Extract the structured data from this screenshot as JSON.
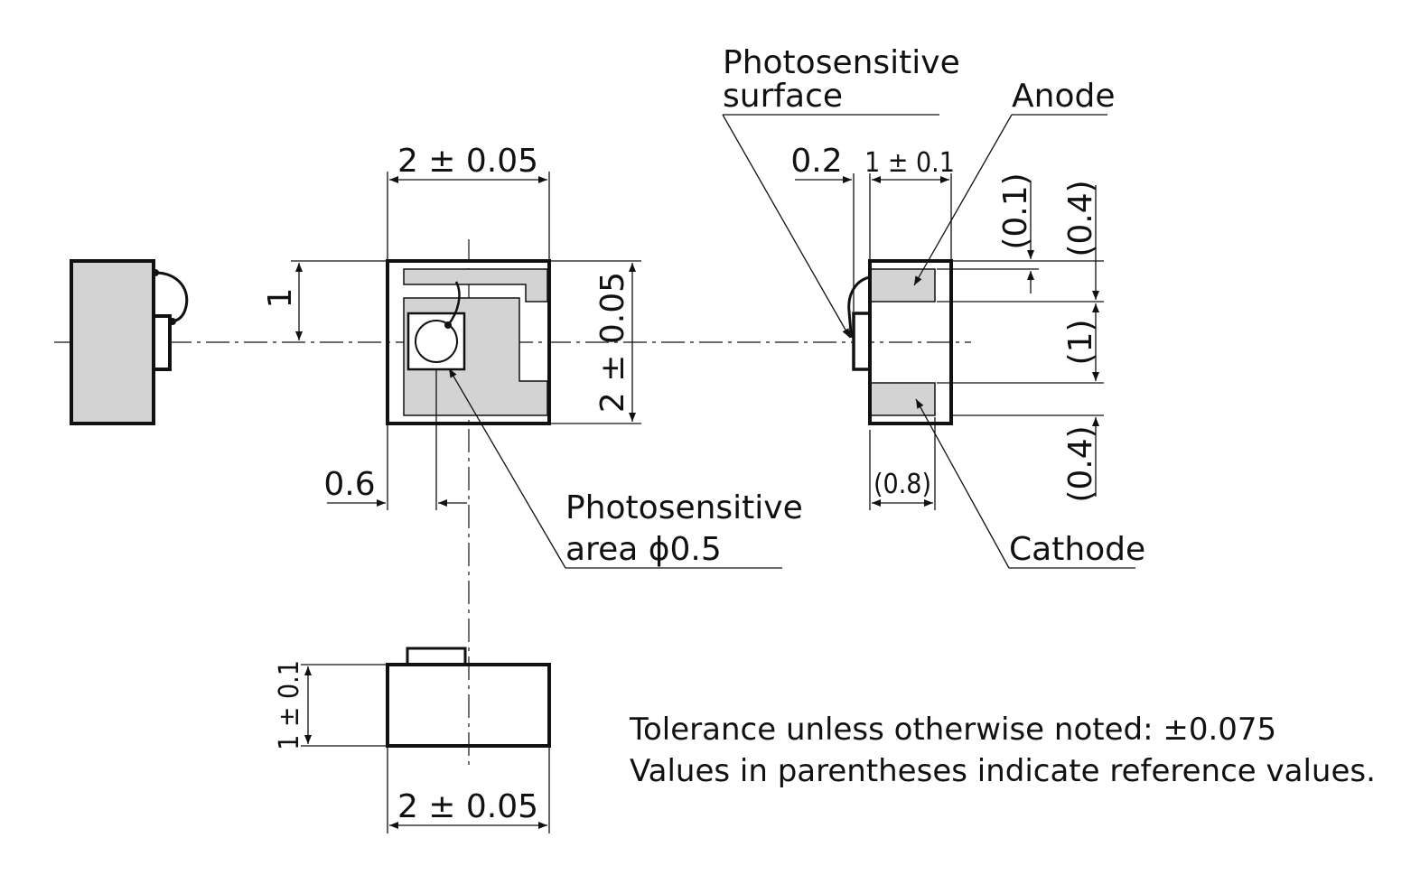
{
  "labels": {
    "photosensitive_surface_line1": "Photosensitive",
    "photosensitive_surface_line2": "surface",
    "anode": "Anode",
    "cathode": "Cathode",
    "photosensitive_area_line1": "Photosensitive",
    "photosensitive_area_line2": "area ϕ0.5"
  },
  "dimensions": {
    "top_width": "2 ± 0.05",
    "front_height": "2 ± 0.05",
    "pad_offset": "1",
    "area_offset": "0.6",
    "bottom_width": "2 ± 0.05",
    "bottom_height": "1 ± 0.1",
    "side_offset": "0.2",
    "side_width": "1 ± 0.1",
    "ref_01": "(0.1)",
    "ref_04_top": "(0.4)",
    "ref_1": "(1)",
    "ref_04_bottom": "(0.4)",
    "ref_08": "(0.8)"
  },
  "notes": {
    "tolerance": "Tolerance unless otherwise noted: ±0.075",
    "reference": "Values in parentheses indicate reference values."
  },
  "colors": {
    "line": "#111111",
    "fill": "#d3d3d3",
    "background": "#ffffff"
  }
}
